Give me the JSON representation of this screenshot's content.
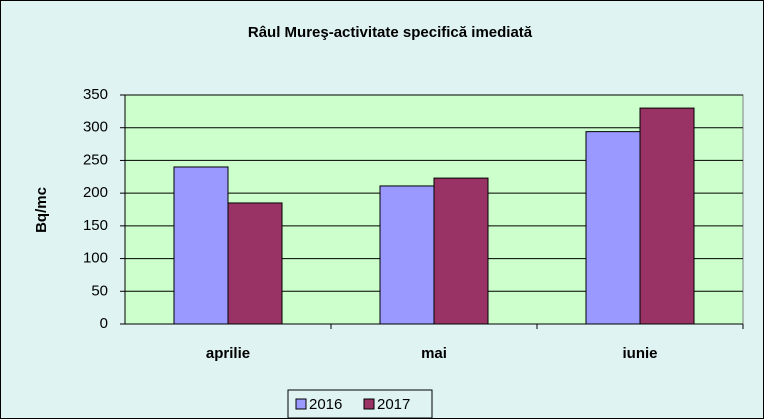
{
  "chart_data": {
    "type": "bar",
    "title": "Râul Mureş-activitate specifică imediată",
    "y_label": "Bq/mc",
    "categories": [
      "aprilie",
      "mai",
      "iunie"
    ],
    "series": [
      {
        "name": "2016",
        "color": "#9999ff",
        "values": [
          240,
          211,
          294
        ]
      },
      {
        "name": "2017",
        "color": "#993366",
        "values": [
          185,
          223,
          330
        ]
      }
    ],
    "ylim": [
      0,
      350
    ],
    "yticks": [
      0,
      50,
      100,
      150,
      200,
      250,
      300,
      350
    ],
    "grid": true,
    "legend": "bottom"
  }
}
